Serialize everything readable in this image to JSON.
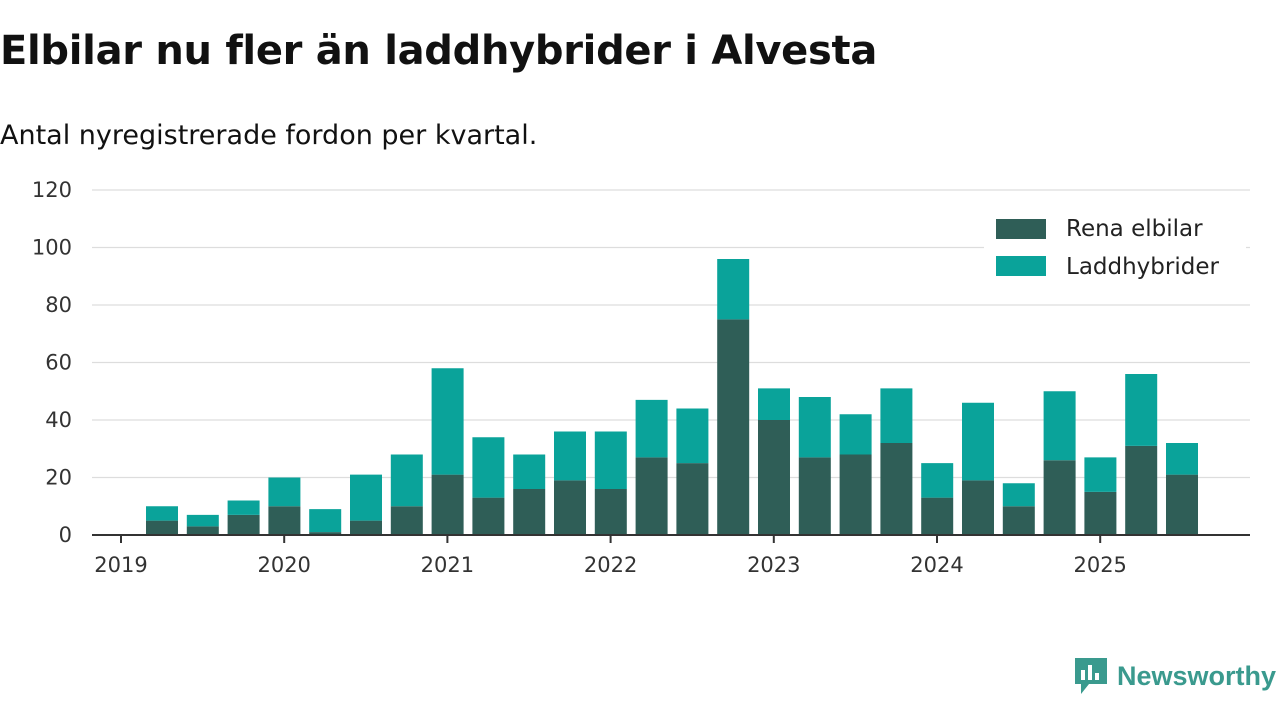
{
  "title": "Elbilar nu fler än laddhybrider i Alvesta",
  "subtitle": "Antal nyregistrerade fordon per kvartal.",
  "brand": "Newsworthy",
  "colors": {
    "elbilar": "#2f5e57",
    "laddhybrider": "#0aa39a",
    "grid": "#dddddd",
    "axis": "#333333"
  },
  "chart_data": {
    "type": "bar",
    "stacked": true,
    "title": "Elbilar nu fler än laddhybrider i Alvesta",
    "subtitle": "Antal nyregistrerade fordon per kvartal.",
    "xlabel": "",
    "ylabel": "",
    "ylim": [
      0,
      120
    ],
    "yticks": [
      "0",
      "20",
      "40",
      "60",
      "80",
      "100",
      "120"
    ],
    "xticks": [
      "2019",
      "2020",
      "2021",
      "2022",
      "2023",
      "2024",
      "2025"
    ],
    "legend_position": "top-right",
    "categories": [
      "2019 Q2",
      "2019 Q3",
      "2019 Q4",
      "2020 Q1",
      "2020 Q2",
      "2020 Q3",
      "2020 Q4",
      "2021 Q1",
      "2021 Q2",
      "2021 Q3",
      "2021 Q4",
      "2022 Q1",
      "2022 Q2",
      "2022 Q3",
      "2022 Q4",
      "2023 Q1",
      "2023 Q2",
      "2023 Q3",
      "2023 Q4",
      "2024 Q1",
      "2024 Q2",
      "2024 Q3",
      "2024 Q4",
      "2025 Q1",
      "2025 Q2",
      "2025 Q3"
    ],
    "series": [
      {
        "name": "Rena elbilar",
        "values": [
          5,
          3,
          7,
          10,
          1,
          5,
          10,
          21,
          13,
          16,
          19,
          16,
          27,
          25,
          75,
          40,
          27,
          28,
          32,
          13,
          19,
          10,
          26,
          15,
          31,
          21
        ]
      },
      {
        "name": "Laddhybrider",
        "values": [
          5,
          4,
          5,
          10,
          8,
          16,
          18,
          37,
          21,
          12,
          17,
          20,
          20,
          19,
          21,
          11,
          21,
          14,
          19,
          12,
          27,
          8,
          24,
          12,
          25,
          11
        ]
      }
    ]
  }
}
